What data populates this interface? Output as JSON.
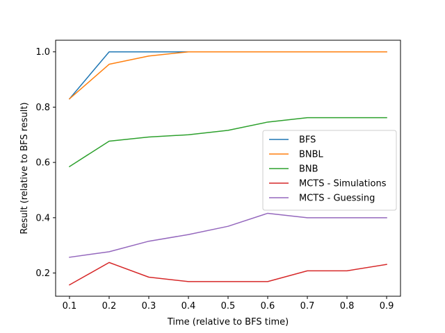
{
  "chart_data": {
    "type": "line",
    "title": "",
    "xlabel": "Time (relative to BFS time)",
    "ylabel": "Result (relative to BFS result)",
    "x": [
      0.1,
      0.2,
      0.3,
      0.4,
      0.5,
      0.6,
      0.7,
      0.8,
      0.9
    ],
    "xlim": [
      0.065,
      0.935
    ],
    "ylim": [
      0.116,
      1.042
    ],
    "xticks": [
      0.1,
      0.2,
      0.3,
      0.4,
      0.5,
      0.6,
      0.7,
      0.8,
      0.9
    ],
    "xtick_labels": [
      "0.1",
      "0.2",
      "0.3",
      "0.4",
      "0.5",
      "0.6",
      "0.7",
      "0.8",
      "0.9"
    ],
    "yticks": [
      0.2,
      0.4,
      0.6,
      0.8,
      1.0
    ],
    "ytick_labels": [
      "0.2",
      "0.4",
      "0.6",
      "0.8",
      "1.0"
    ],
    "grid": false,
    "legend_position": "center-right",
    "series": [
      {
        "name": "BFS",
        "color": "#1f77b4",
        "values": [
          0.83,
          1.0,
          1.0,
          1.0,
          1.0,
          1.0,
          1.0,
          1.0,
          1.0
        ]
      },
      {
        "name": "BNBL",
        "color": "#ff7f0e",
        "values": [
          0.83,
          0.955,
          0.985,
          1.0,
          1.0,
          1.0,
          1.0,
          1.0,
          1.0
        ]
      },
      {
        "name": "BNB",
        "color": "#2ca02c",
        "values": [
          0.585,
          0.677,
          0.692,
          0.7,
          0.716,
          0.746,
          0.762,
          0.762,
          0.762
        ]
      },
      {
        "name": "MCTS - Simulations",
        "color": "#d62728",
        "values": [
          0.157,
          0.238,
          0.185,
          0.169,
          0.169,
          0.169,
          0.208,
          0.208,
          0.231
        ]
      },
      {
        "name": "MCTS - Guessing",
        "color": "#9467bd",
        "values": [
          0.257,
          0.277,
          0.315,
          0.339,
          0.369,
          0.416,
          0.4,
          0.4,
          0.4
        ]
      }
    ]
  }
}
